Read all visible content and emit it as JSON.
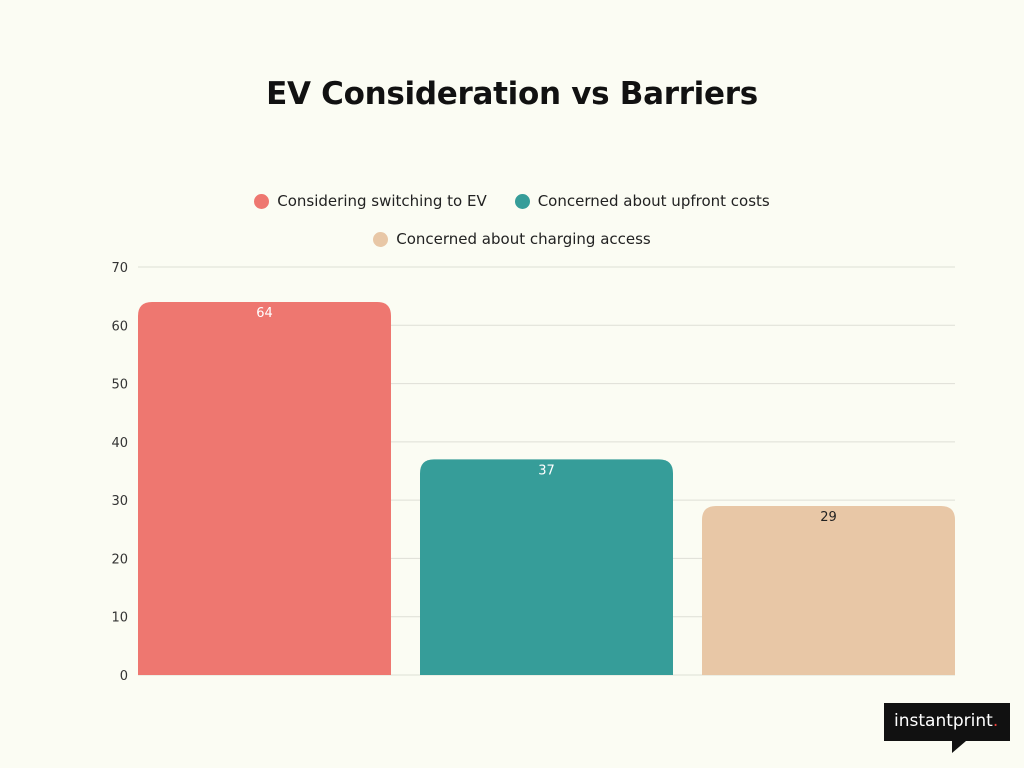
{
  "chart_data": {
    "type": "bar",
    "title": "EV Consideration vs Barriers",
    "categories": [
      "Considering switching to EV",
      "Concerned about upfront costs",
      "Concerned about charging access"
    ],
    "values": [
      64,
      37,
      29
    ],
    "colors": [
      "#ee7770",
      "#369d99",
      "#e8c7a6"
    ],
    "label_colors": [
      "#ffffff",
      "#ffffff",
      "#222222"
    ],
    "ylim": [
      0,
      70
    ],
    "yticks": [
      0,
      10,
      20,
      30,
      40,
      50,
      60,
      70
    ],
    "grid": true,
    "legend_position": "top"
  },
  "legend": {
    "items": [
      {
        "label": "Considering switching to EV",
        "color": "#ee7770"
      },
      {
        "label": "Concerned about upfront costs",
        "color": "#369d99"
      },
      {
        "label": "Concerned about charging access",
        "color": "#e8c7a6"
      }
    ]
  },
  "logo": {
    "text": "instantprint",
    "dot": "."
  }
}
